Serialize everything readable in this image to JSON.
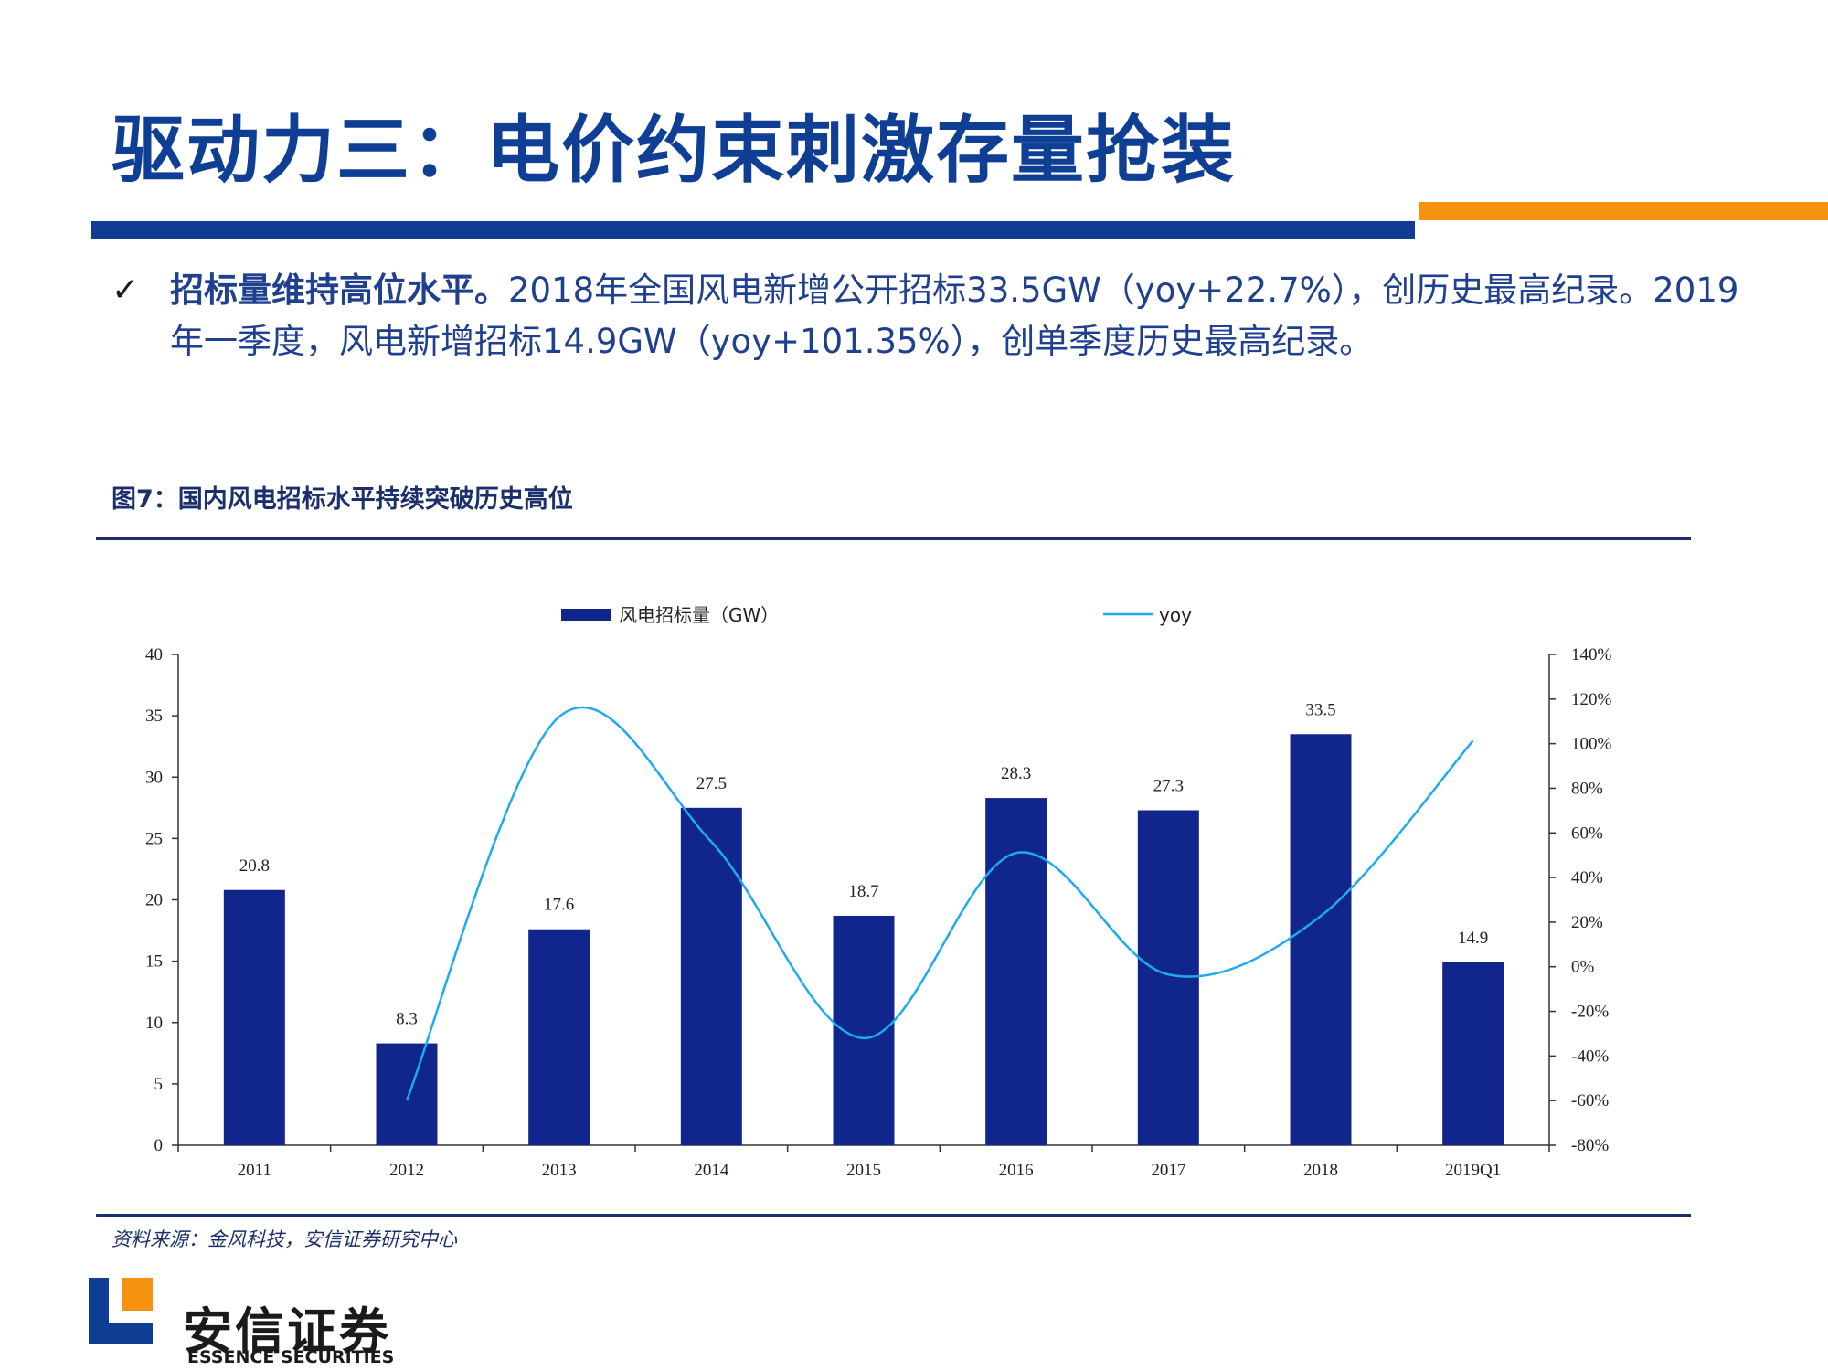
{
  "slide": {
    "title": "驱动力三：电价约束刺激存量抢装",
    "bullet_check": "✓",
    "bullet_lead": "招标量维持高位水平。",
    "bullet_body": "2018年全国风电新增公开招标33.5GW（yoy+22.7%），创历史最高纪录。2019年一季度，风电新增招标14.9GW（yoy+101.35%），创单季度历史最高纪录。",
    "figure_title": "图7：国内风电招标水平持续突破历史高位",
    "source": "资料来源：金风科技，安信证券研究中心"
  },
  "brand": {
    "name_cn": "安信证券",
    "name_en": "ESSENCE SECURITIES",
    "blue": "#0f3f95",
    "orange": "#f6920f"
  },
  "chart_data": {
    "type": "bar",
    "categories": [
      "2011",
      "2012",
      "2013",
      "2014",
      "2015",
      "2016",
      "2017",
      "2018",
      "2019Q1"
    ],
    "series": [
      {
        "name": "风电招标量（GW）",
        "kind": "bar",
        "axis": "left",
        "color": "#10268c",
        "values": [
          20.8,
          8.3,
          17.6,
          27.5,
          18.7,
          28.3,
          27.3,
          33.5,
          14.9
        ],
        "labels": [
          "20.8",
          "8.3",
          "17.6",
          "27.5",
          "18.7",
          "28.3",
          "27.3",
          "33.5",
          "14.9"
        ]
      },
      {
        "name": "yoy",
        "kind": "line",
        "axis": "right",
        "color": "#1eaaf1",
        "values": [
          null,
          -0.6,
          1.12,
          0.56,
          -0.32,
          0.51,
          -0.035,
          0.227,
          1.0135
        ]
      }
    ],
    "y_left": {
      "min": 0,
      "max": 40,
      "ticks": [
        "0",
        "5",
        "10",
        "15",
        "20",
        "25",
        "30",
        "35",
        "40"
      ]
    },
    "y_right": {
      "min": -0.8,
      "max": 1.4,
      "ticks": [
        "-80%",
        "-60%",
        "-40%",
        "-20%",
        "0%",
        "20%",
        "40%",
        "60%",
        "80%",
        "100%",
        "120%",
        "140%"
      ]
    },
    "legend_position": "top",
    "grid": false
  }
}
